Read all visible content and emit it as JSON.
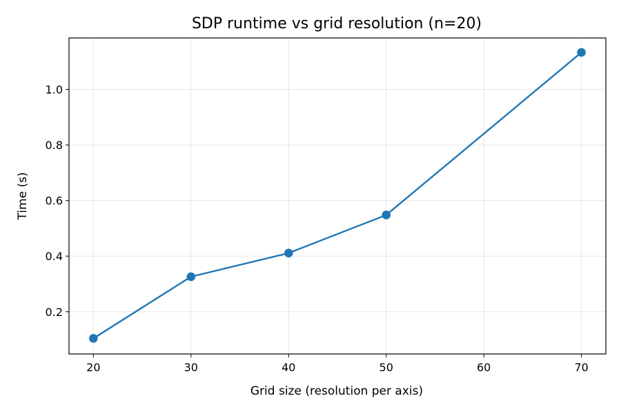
{
  "chart_data": {
    "type": "line",
    "title": "SDP runtime vs grid resolution (n=20)",
    "xlabel": "Grid size (resolution per axis)",
    "ylabel": "Time (s)",
    "x": [
      20,
      30,
      40,
      50,
      70
    ],
    "series": [
      {
        "values": [
          0.104,
          0.326,
          0.411,
          0.548,
          1.133
        ],
        "color": "#1f77b4",
        "marker": "circle"
      }
    ],
    "xlim": [
      17.5,
      72.5
    ],
    "ylim": [
      0.048,
      1.185
    ],
    "xticks": [
      20,
      30,
      40,
      50,
      60,
      70
    ],
    "yticks": [
      0.2,
      0.4,
      0.6,
      0.8,
      1.0
    ],
    "xtick_labels": [
      "20",
      "30",
      "40",
      "50",
      "60",
      "70"
    ],
    "ytick_labels": [
      "0.2",
      "0.4",
      "0.6",
      "0.8",
      "1.0"
    ],
    "grid": true,
    "legend": false
  }
}
